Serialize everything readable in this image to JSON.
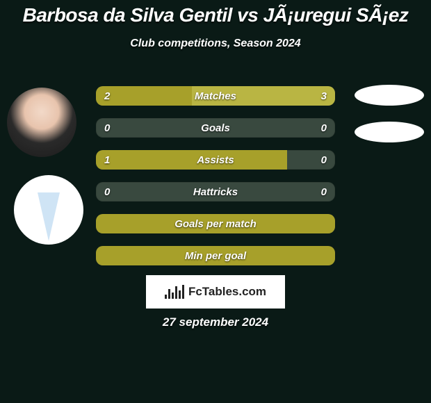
{
  "colors": {
    "page_bg": "#0a1a16",
    "text": "#ffffff",
    "bar_left": "#a7a02a",
    "bar_right": "#b9b543",
    "bar_track": "#39493f"
  },
  "title": {
    "text": "Barbosa da Silva Gentil vs JÃ¡uregui SÃ¡ez",
    "fontsize": 28
  },
  "subtitle": {
    "text": "Club competitions, Season 2024",
    "fontsize": 16
  },
  "stats": {
    "label_fontsize": 15,
    "value_fontsize": 15,
    "rows": [
      {
        "label": "Matches",
        "left": "2",
        "right": "3",
        "left_pct": 40,
        "right_pct": 60,
        "show_values": true
      },
      {
        "label": "Goals",
        "left": "0",
        "right": "0",
        "left_pct": 0,
        "right_pct": 0,
        "show_values": true
      },
      {
        "label": "Assists",
        "left": "1",
        "right": "0",
        "left_pct": 80,
        "right_pct": 0,
        "show_values": true
      },
      {
        "label": "Hattricks",
        "left": "0",
        "right": "0",
        "left_pct": 0,
        "right_pct": 0,
        "show_values": true
      },
      {
        "label": "Goals per match",
        "left": "",
        "right": "",
        "left_pct": 100,
        "right_pct": 0,
        "show_values": false
      },
      {
        "label": "Min per goal",
        "left": "",
        "right": "",
        "left_pct": 100,
        "right_pct": 0,
        "show_values": false
      }
    ]
  },
  "logo": {
    "text": "FcTables.com",
    "fontsize": 17
  },
  "date": {
    "text": "27 september 2024",
    "fontsize": 17
  }
}
